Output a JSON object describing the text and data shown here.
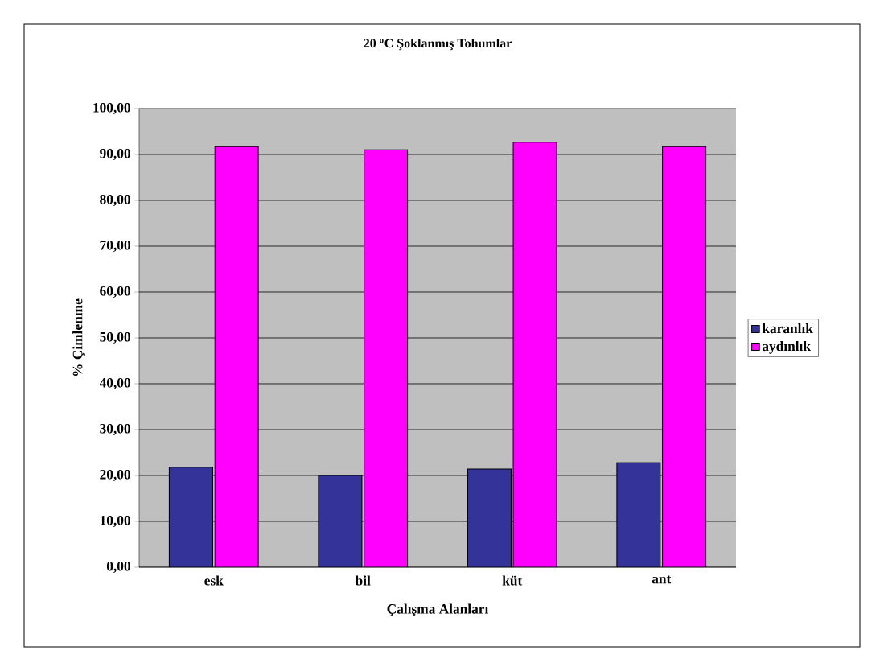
{
  "chart_data": {
    "type": "bar",
    "title": "20 $^{o}$C Şoklanmış Tohumlar",
    "xlabel": "Çalışma Alanları",
    "ylabel": "% Çimlenme",
    "categories": [
      "esk",
      "bil",
      "küt",
      "ant"
    ],
    "series": [
      {
        "name": "karanlık",
        "color": "#333399",
        "values": [
          21.8,
          20.0,
          21.4,
          22.8
        ]
      },
      {
        "name": "aydınlık",
        "color": "#ff00ff",
        "values": [
          91.7,
          91.0,
          92.7,
          91.7
        ]
      }
    ],
    "ylim": [
      0,
      100
    ],
    "yticks": [
      {
        "value": 0,
        "label": "0,00"
      },
      {
        "value": 10,
        "label": "10,00"
      },
      {
        "value": 20,
        "label": "20,00"
      },
      {
        "value": 30,
        "label": "30,00"
      },
      {
        "value": 40,
        "label": "40,00"
      },
      {
        "value": 50,
        "label": "50,00"
      },
      {
        "value": 60,
        "label": "60,00"
      },
      {
        "value": 70,
        "label": "70,00"
      },
      {
        "value": 80,
        "label": "80,00"
      },
      {
        "value": 90,
        "label": "90,00"
      },
      {
        "value": 100,
        "label": "100,00"
      }
    ],
    "grid": "y",
    "legend": "right"
  }
}
